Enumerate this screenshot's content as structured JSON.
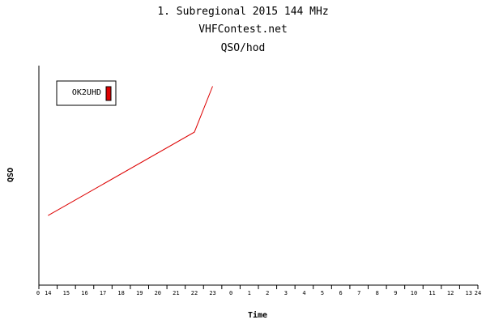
{
  "chart_data": {
    "type": "line",
    "title": "1. Subregional 2015 144 MHz",
    "subtitle": "VHFContest.net",
    "subtitle2": "QSO/hod",
    "xlabel": "Time",
    "ylabel": "QSO",
    "x_start_label": "0",
    "x_end_label": "24",
    "x_tick_labels": [
      "14",
      "15",
      "16",
      "17",
      "18",
      "19",
      "20",
      "21",
      "22",
      "23",
      "0",
      "1",
      "2",
      "3",
      "4",
      "5",
      "6",
      "7",
      "8",
      "9",
      "10",
      "11",
      "12",
      "13"
    ],
    "legend_position": "top-left",
    "grid": false,
    "series": [
      {
        "name": "OK2UHD",
        "color": "#dd0000",
        "x_index": [
          0.5,
          8.5,
          9.5
        ],
        "y_rel": [
          0.317,
          0.697,
          0.906
        ]
      }
    ]
  }
}
